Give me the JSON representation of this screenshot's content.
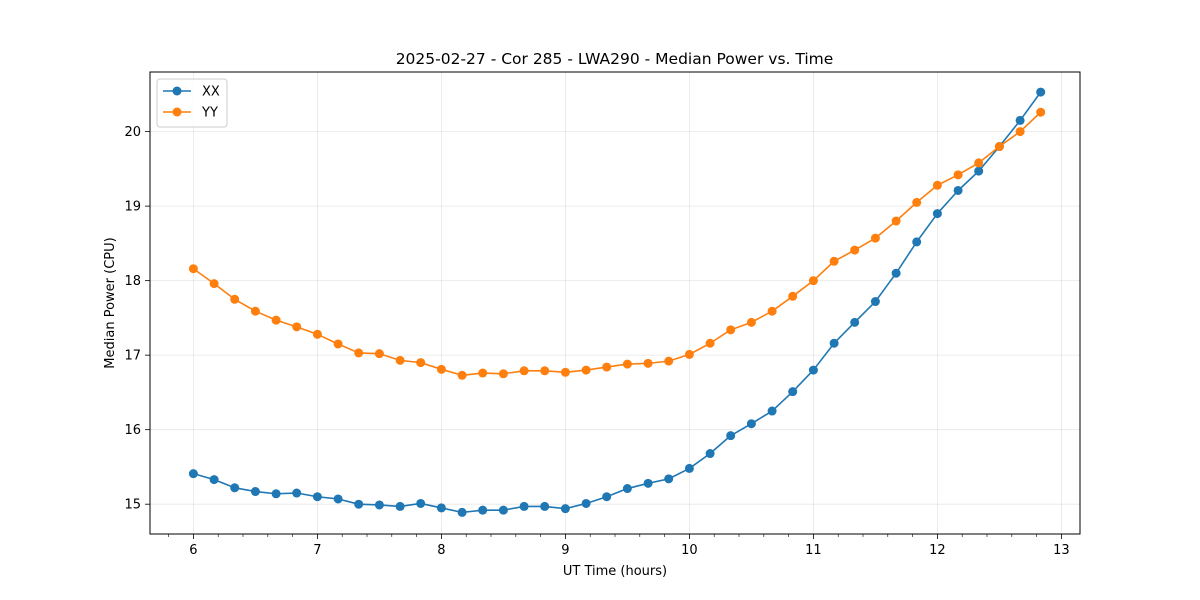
{
  "chart_data": {
    "type": "line",
    "title": "2025-02-27 - Cor 285 - LWA290 - Median Power vs. Time",
    "xlabel": "UT Time (hours)",
    "ylabel": "Median Power (CPU)",
    "xlim": [
      5.65,
      13.15
    ],
    "ylim": [
      14.6,
      20.8
    ],
    "xticks": [
      6,
      7,
      8,
      9,
      10,
      11,
      12,
      13
    ],
    "xtick_labels": [
      "6",
      "7",
      "8",
      "9",
      "10",
      "11",
      "12",
      "13"
    ],
    "yticks": [
      15,
      16,
      17,
      18,
      19,
      20
    ],
    "ytick_labels": [
      "15",
      "16",
      "17",
      "18",
      "19",
      "20"
    ],
    "grid": true,
    "legend_position": "top-left",
    "x": [
      6.0,
      6.167,
      6.333,
      6.5,
      6.667,
      6.833,
      7.0,
      7.167,
      7.333,
      7.5,
      7.667,
      7.833,
      8.0,
      8.167,
      8.333,
      8.5,
      8.667,
      8.833,
      9.0,
      9.167,
      9.333,
      9.5,
      9.667,
      9.833,
      10.0,
      10.167,
      10.333,
      10.5,
      10.667,
      10.833,
      11.0,
      11.167,
      11.333,
      11.5,
      11.667,
      11.833,
      12.0,
      12.167,
      12.333,
      12.5,
      12.667,
      12.833
    ],
    "series": [
      {
        "name": "XX",
        "color": "#1f77b4",
        "values": [
          15.41,
          15.33,
          15.22,
          15.17,
          15.14,
          15.15,
          15.1,
          15.07,
          15.0,
          14.99,
          14.97,
          15.01,
          14.95,
          14.89,
          14.92,
          14.92,
          14.97,
          14.97,
          14.94,
          15.01,
          15.1,
          15.21,
          15.28,
          15.34,
          15.48,
          15.68,
          15.92,
          16.08,
          16.25,
          16.51,
          16.8,
          17.16,
          17.44,
          17.72,
          18.1,
          18.52,
          18.9,
          19.21,
          19.47,
          19.8,
          20.15,
          20.53
        ]
      },
      {
        "name": "YY",
        "color": "#ff7f0e",
        "values": [
          18.16,
          17.96,
          17.75,
          17.59,
          17.47,
          17.38,
          17.28,
          17.15,
          17.03,
          17.02,
          16.93,
          16.9,
          16.81,
          16.73,
          16.76,
          16.75,
          16.79,
          16.79,
          16.77,
          16.8,
          16.84,
          16.88,
          16.89,
          16.92,
          17.01,
          17.16,
          17.34,
          17.44,
          17.59,
          17.79,
          18.0,
          18.26,
          18.41,
          18.57,
          18.8,
          19.05,
          19.28,
          19.42,
          19.58,
          19.8,
          20.0,
          20.26
        ]
      }
    ]
  }
}
